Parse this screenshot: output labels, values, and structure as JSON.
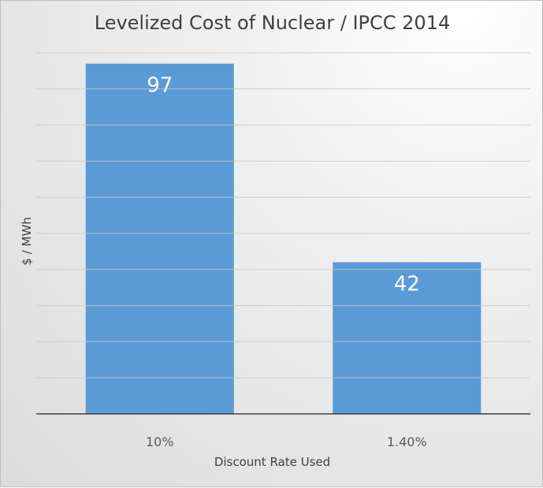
{
  "chart_data": {
    "type": "bar",
    "title": "Levelized Cost of Nuclear / IPCC 2014",
    "xlabel": "Discount Rate Used",
    "ylabel": "$ / MWh",
    "categories": [
      "10%",
      "1.40%"
    ],
    "values": [
      97,
      42
    ],
    "data_labels": [
      "97",
      "42"
    ],
    "ylim": [
      0,
      100
    ],
    "ytick_step": 10,
    "y_tick_labels_shown": false,
    "grid": true,
    "legend": "none",
    "bar_color": "#5b9bd5"
  }
}
